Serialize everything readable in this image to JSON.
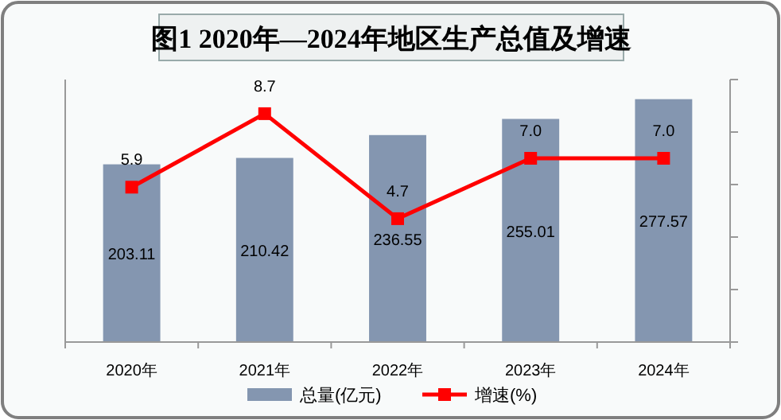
{
  "chart_data": {
    "type": "bar",
    "title": "图1  2020年—2024年地区生产总值及增速",
    "categories": [
      "2020年",
      "2021年",
      "2022年",
      "2023年",
      "2024年"
    ],
    "series": [
      {
        "name": "总量(亿元)",
        "color": "#8496b0",
        "values": [
          203.11,
          210.42,
          236.55,
          255.01,
          277.57
        ]
      },
      {
        "name": "增速(%)",
        "type": "line",
        "axis": "y2",
        "color": "#ff0000",
        "marker": "square",
        "values": [
          5.9,
          8.7,
          4.7,
          7.0,
          7.0
        ],
        "value_labels": [
          "5.9",
          "8.7",
          "4.7",
          "7.0",
          "7.0"
        ]
      }
    ],
    "ylim": [
      0,
      300
    ],
    "y2lim": [
      0,
      10
    ],
    "y2ticks": [
      {
        "value": 0,
        "label": null
      },
      {
        "value": 2,
        "label": null
      },
      {
        "value": 4,
        "label": null
      },
      {
        "value": 6,
        "label": null
      },
      {
        "value": 8,
        "label": null
      },
      {
        "value": 10,
        "label": null
      }
    ],
    "tick_labels": "x",
    "data_labels": true,
    "legend": "bottom"
  }
}
